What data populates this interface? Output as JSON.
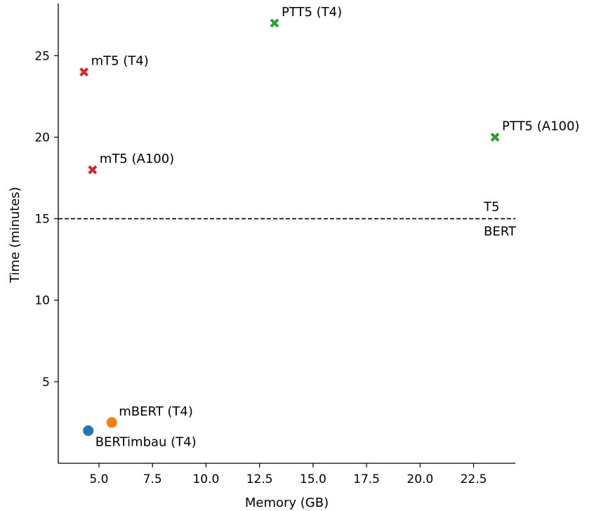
{
  "chart_data": {
    "type": "scatter",
    "title": "",
    "xlabel": "Memory (GB)",
    "ylabel": "Time (minutes)",
    "xlim": [
      3.1,
      24.45
    ],
    "ylim": [
      0.0,
      28.2
    ],
    "xticks": [
      5.0,
      7.5,
      10.0,
      12.5,
      15.0,
      17.5,
      20.0,
      22.5
    ],
    "xtick_labels": [
      "5.0",
      "7.5",
      "10.0",
      "12.5",
      "15.0",
      "17.5",
      "20.0",
      "22.5"
    ],
    "yticks": [
      5,
      10,
      15,
      20,
      25
    ],
    "ytick_labels": [
      "5",
      "10",
      "15",
      "20",
      "25"
    ],
    "grid": false,
    "points": [
      {
        "label": "BERTimbau (T4)",
        "x": 4.5,
        "y": 2.0,
        "marker": "circle",
        "color": "#1f77b4",
        "label_pos": "below-right"
      },
      {
        "label": "mBERT (T4)",
        "x": 5.6,
        "y": 2.5,
        "marker": "circle",
        "color": "#ff7f0e",
        "label_pos": "above-right"
      },
      {
        "label": "mT5 (T4)",
        "x": 4.3,
        "y": 24.0,
        "marker": "x",
        "color": "#d62728",
        "label_pos": "above-right"
      },
      {
        "label": "mT5 (A100)",
        "x": 4.7,
        "y": 18.0,
        "marker": "x",
        "color": "#d62728",
        "label_pos": "above-right"
      },
      {
        "label": "PTT5 (T4)",
        "x": 13.2,
        "y": 27.0,
        "marker": "x",
        "color": "#2ca02c",
        "label_pos": "above-right"
      },
      {
        "label": "PTT5 (A100)",
        "x": 23.5,
        "y": 20.0,
        "marker": "x",
        "color": "#2ca02c",
        "label_pos": "above-right"
      }
    ],
    "reference_line": {
      "y": 15,
      "style": "dashed",
      "color": "#000000",
      "label_above": "T5",
      "label_below": "BERT"
    }
  }
}
